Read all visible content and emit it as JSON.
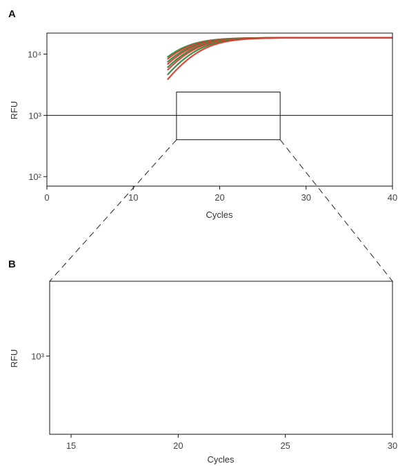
{
  "chart_data": [
    {
      "panel": "A",
      "type": "line",
      "title": "",
      "xlabel": "Cycles",
      "ylabel": "RFU",
      "xlim": [
        0,
        40
      ],
      "ylim": [
        70,
        22000
      ],
      "yscale": "log",
      "x_ticks": [
        0,
        10,
        20,
        30,
        40
      ],
      "y_ticks": [
        {
          "value": 100,
          "label": "10²"
        },
        {
          "value": 1000,
          "label": "10³"
        },
        {
          "value": 10000,
          "label": "10⁴"
        }
      ],
      "threshold": 1000,
      "zoom_box": {
        "x": [
          15,
          27
        ],
        "y": [
          400,
          2400
        ]
      },
      "plateau": 18500,
      "series_colors": [
        "#2e8b3a",
        "#e23a32"
      ],
      "series": [
        {
          "color": "#2e8b3a",
          "cq": 20.2
        },
        {
          "color": "#e23a32",
          "cq": 20.5
        },
        {
          "color": "#2e8b3a",
          "cq": 20.9
        },
        {
          "color": "#e23a32",
          "cq": 21.2
        },
        {
          "color": "#2e8b3a",
          "cq": 21.6
        },
        {
          "color": "#e23a32",
          "cq": 21.9
        },
        {
          "color": "#2e8b3a",
          "cq": 22.4
        },
        {
          "color": "#e23a32",
          "cq": 22.9
        }
      ],
      "grid": false
    },
    {
      "panel": "B",
      "type": "line",
      "title": "",
      "xlabel": "Cycles",
      "ylabel": "RFU",
      "xlim": [
        14,
        30
      ],
      "ylim": [
        400,
        2400
      ],
      "yscale": "log",
      "x_ticks": [
        15,
        20,
        25,
        30
      ],
      "y_ticks": [
        {
          "value": 1000,
          "label": "10³"
        }
      ],
      "grid": false
    }
  ],
  "panels": {
    "a_label": "A",
    "b_label": "B"
  }
}
